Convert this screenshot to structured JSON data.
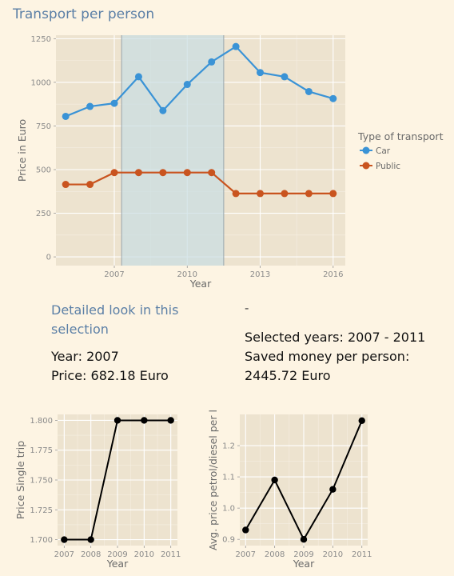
{
  "page": {
    "title": "Transport per person"
  },
  "detail": {
    "heading": "Detailed look in this selection",
    "year_label": "Year: 2007",
    "price_label": "Price: 682.18 Euro",
    "dash": "-",
    "selected_years": "Selected years: 2007 - 2011",
    "saved_money": "Saved money per person: 2445.72 Euro"
  },
  "chart_data": [
    {
      "type": "line",
      "x": [
        2005,
        2006,
        2007,
        2008,
        2009,
        2010,
        2011,
        2012,
        2013,
        2014,
        2015,
        2016
      ],
      "series": [
        {
          "name": "Car",
          "color": "#3a93d6",
          "values": [
            805,
            862,
            880,
            1032,
            838,
            988,
            1117,
            1205,
            1056,
            1032,
            947,
            907
          ]
        },
        {
          "name": "Public",
          "color": "#c9541f",
          "values": [
            415,
            415,
            483,
            483,
            483,
            483,
            483,
            363,
            363,
            363,
            363,
            363
          ]
        }
      ],
      "highlight": [
        2007.3,
        2011.5
      ],
      "xlabel": "Year",
      "ylabel": "Price in Euro",
      "xticks": [
        2007,
        2010,
        2013,
        2016
      ],
      "yticks": [
        0,
        250,
        500,
        750,
        1000,
        1250
      ],
      "xlim": [
        2004.6,
        2016.5
      ],
      "ylim": [
        -50,
        1270
      ],
      "legend_title": "Type of transport",
      "legend_position": "right",
      "grid": true
    },
    {
      "type": "line",
      "x": [
        2007,
        2008,
        2009,
        2010,
        2011
      ],
      "series": [
        {
          "color": "#000000",
          "values": [
            1.7,
            1.7,
            1.8,
            1.8,
            1.8
          ]
        }
      ],
      "xlabel": "Year",
      "ylabel": "Price Single trip",
      "xticks": [
        2007,
        2008,
        2009,
        2010,
        2011
      ],
      "yticks": [
        1.7,
        1.725,
        1.75,
        1.775,
        1.8
      ],
      "ytick_labels": [
        "1.700",
        "1.725",
        "1.750",
        "1.775",
        "1.800"
      ],
      "xlim": [
        2006.75,
        2011.25
      ],
      "ylim": [
        1.695,
        1.805
      ],
      "grid": true
    },
    {
      "type": "line",
      "x": [
        2007,
        2008,
        2009,
        2010,
        2011
      ],
      "series": [
        {
          "color": "#000000",
          "values": [
            0.93,
            1.09,
            0.9,
            1.06,
            1.28
          ]
        }
      ],
      "xlabel": "Year",
      "ylabel": "Avg. price petrol/diesel per l",
      "xticks": [
        2007,
        2008,
        2009,
        2010,
        2011
      ],
      "yticks": [
        0.9,
        1.0,
        1.1,
        1.2
      ],
      "ytick_labels": [
        "0.9",
        "1.0",
        "1.1",
        "1.2"
      ],
      "xlim": [
        2006.8,
        2011.2
      ],
      "ylim": [
        0.88,
        1.3
      ],
      "grid": true
    }
  ]
}
